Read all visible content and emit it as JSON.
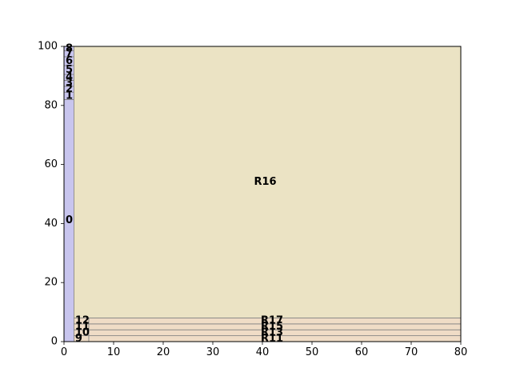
{
  "chart_data": {
    "type": "treemap",
    "title": "",
    "xlabel": "",
    "ylabel": "",
    "xlim": [
      0,
      80
    ],
    "ylim": [
      0,
      100
    ],
    "xticks": [
      "0",
      "10",
      "20",
      "30",
      "40",
      "50",
      "60",
      "70",
      "80"
    ],
    "yticks": [
      "0",
      "20",
      "40",
      "60",
      "80",
      "100"
    ],
    "grid": false,
    "colors": {
      "left_column": "#c8c5ee",
      "main": "#ebe3c4",
      "bottom_strips": "#efdcc6",
      "edge": "#808080",
      "axis": "#000000"
    },
    "regions": [
      {
        "label": "0",
        "x0": 0,
        "x1": 2,
        "y0": 0,
        "y1": 82,
        "group": "left_column"
      },
      {
        "label": "1",
        "x0": 0,
        "x1": 2,
        "y0": 82,
        "y1": 84.5,
        "group": "left_column"
      },
      {
        "label": "2",
        "x0": 0,
        "x1": 2,
        "y0": 84.5,
        "y1": 86.5,
        "group": "left_column"
      },
      {
        "label": "3",
        "x0": 0,
        "x1": 2,
        "y0": 86.5,
        "y1": 88.5,
        "group": "left_column"
      },
      {
        "label": "4",
        "x0": 0,
        "x1": 2,
        "y0": 88.5,
        "y1": 90.5,
        "group": "left_column"
      },
      {
        "label": "5",
        "x0": 0,
        "x1": 2,
        "y0": 90.5,
        "y1": 93.5,
        "group": "left_column"
      },
      {
        "label": "6",
        "x0": 0,
        "x1": 2,
        "y0": 93.5,
        "y1": 96.5,
        "group": "left_column"
      },
      {
        "label": "7",
        "x0": 0,
        "x1": 2,
        "y0": 96.5,
        "y1": 98.5,
        "group": "left_column"
      },
      {
        "label": "8",
        "x0": 0,
        "x1": 2,
        "y0": 98.5,
        "y1": 100,
        "group": "left_column"
      },
      {
        "label": "9",
        "x0": 2,
        "x1": 5,
        "y0": 0,
        "y1": 2,
        "group": "bottom_strips"
      },
      {
        "label": "10",
        "x0": 2,
        "x1": 5,
        "y0": 2,
        "y1": 4,
        "group": "bottom_strips"
      },
      {
        "label": "11",
        "x0": 2,
        "x1": 5,
        "y0": 4,
        "y1": 6,
        "group": "bottom_strips"
      },
      {
        "label": "12",
        "x0": 2,
        "x1": 5,
        "y0": 6,
        "y1": 8,
        "group": "bottom_strips"
      },
      {
        "label": "R11",
        "x0": 5,
        "x1": 80,
        "y0": 0,
        "y1": 2,
        "group": "bottom_strips"
      },
      {
        "label": "R13",
        "x0": 5,
        "x1": 80,
        "y0": 2,
        "y1": 4,
        "group": "bottom_strips"
      },
      {
        "label": "R15",
        "x0": 5,
        "x1": 80,
        "y0": 4,
        "y1": 6,
        "group": "bottom_strips"
      },
      {
        "label": "R17",
        "x0": 5,
        "x1": 80,
        "y0": 6,
        "y1": 8,
        "group": "bottom_strips"
      },
      {
        "label": "R16",
        "x0": 2,
        "x1": 80,
        "y0": 8,
        "y1": 100,
        "group": "main"
      }
    ]
  }
}
